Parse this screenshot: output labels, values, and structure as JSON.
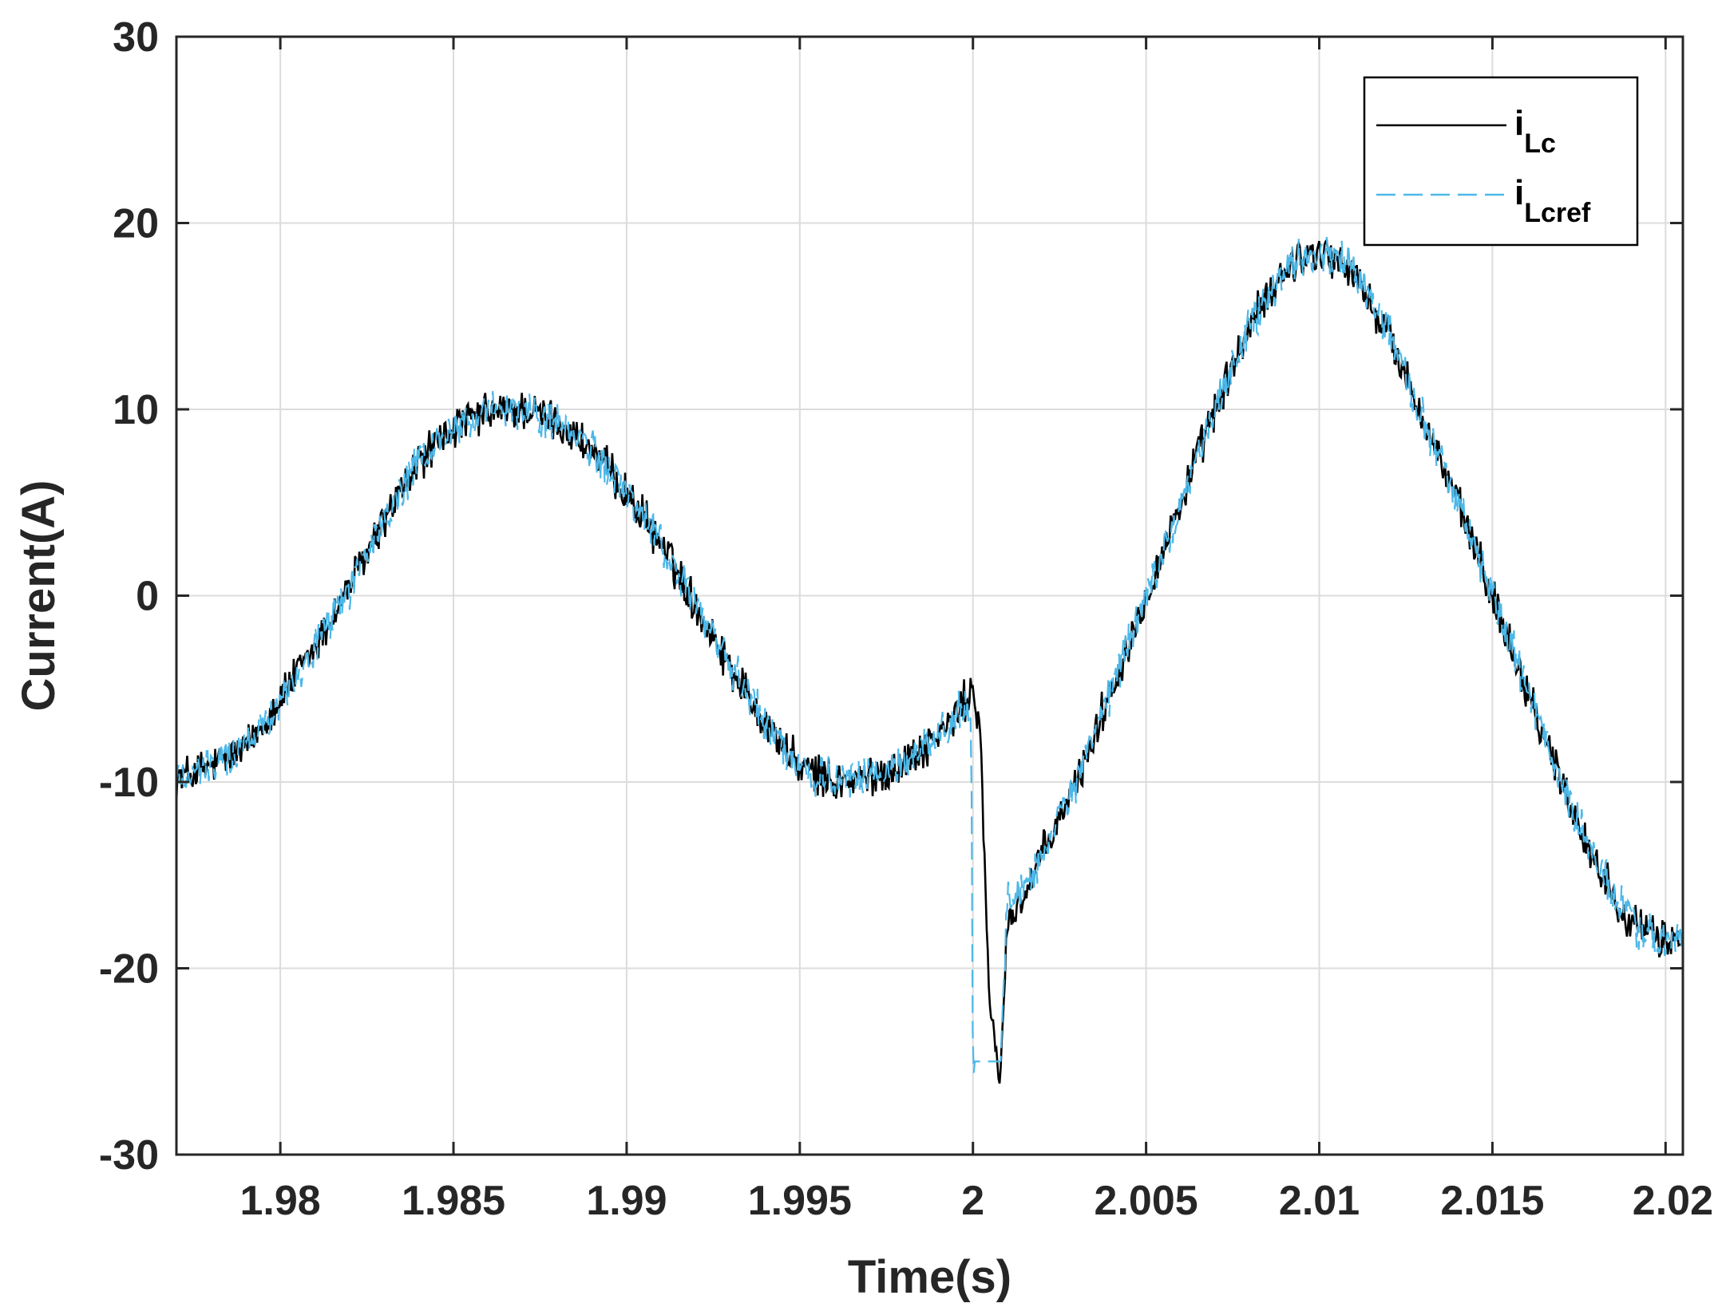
{
  "chart_data": {
    "type": "line",
    "title": "",
    "xlabel": "Time(s)",
    "ylabel": "Current(A)",
    "xlim": [
      1.977,
      2.0205
    ],
    "ylim": [
      -30,
      30
    ],
    "x_ticks": [
      1.98,
      1.985,
      1.99,
      1.995,
      2.0,
      2.005,
      2.01,
      2.015,
      2.02
    ],
    "x_tick_labels": [
      "1.98",
      "1.985",
      "1.99",
      "1.995",
      "2",
      "2.005",
      "2.01",
      "2.015",
      "2.02"
    ],
    "y_ticks": [
      -30,
      -20,
      -10,
      0,
      10,
      20,
      30
    ],
    "y_tick_labels": [
      "-30",
      "-20",
      "-10",
      "0",
      "10",
      "20",
      "30"
    ],
    "grid": true,
    "legend_position": "top-right",
    "series": [
      {
        "name": "i_Lc",
        "legend_main": "i",
        "legend_sub": "Lc",
        "color": "#000000",
        "style": "solid",
        "x": [
          1.977,
          1.978,
          1.979,
          1.98,
          1.981,
          1.982,
          1.983,
          1.984,
          1.985,
          1.986,
          1.987,
          1.988,
          1.989,
          1.99,
          1.991,
          1.992,
          1.993,
          1.994,
          1.995,
          1.996,
          1.997,
          1.998,
          1.999,
          1.9995,
          2.0,
          2.0002,
          2.0005,
          2.0008,
          2.001,
          2.0015,
          2.002,
          2.003,
          2.004,
          2.005,
          2.006,
          2.007,
          2.008,
          2.009,
          2.0095,
          2.01,
          2.0105,
          2.011,
          2.012,
          2.013,
          2.014,
          2.015,
          2.016,
          2.017,
          2.018,
          2.019,
          2.0195,
          2.02,
          2.0205
        ],
        "y": [
          -9.8,
          -9.2,
          -8.2,
          -5.5,
          -2.8,
          0.5,
          4.0,
          7.2,
          9.0,
          9.8,
          10.0,
          9.3,
          7.8,
          5.5,
          2.8,
          -0.5,
          -3.8,
          -6.8,
          -9.2,
          -10.0,
          -9.8,
          -9.0,
          -7.5,
          -6.5,
          -5.0,
          -7.0,
          -23.0,
          -25.5,
          -17.5,
          -16.0,
          -14.0,
          -10.0,
          -5.0,
          0.0,
          5.0,
          10.0,
          14.5,
          17.5,
          18.2,
          18.5,
          18.0,
          17.2,
          14.0,
          9.5,
          5.0,
          0.0,
          -5.0,
          -10.0,
          -14.5,
          -17.5,
          -18.2,
          -18.5,
          -18.3
        ]
      },
      {
        "name": "i_Lcref",
        "legend_main": "i",
        "legend_sub": "Lcref",
        "color": "#4db8e8",
        "style": "dashed",
        "x": [
          1.977,
          1.978,
          1.979,
          1.98,
          1.981,
          1.982,
          1.983,
          1.984,
          1.985,
          1.986,
          1.987,
          1.988,
          1.989,
          1.99,
          1.991,
          1.992,
          1.993,
          1.994,
          1.995,
          1.996,
          1.997,
          1.998,
          1.999,
          1.9995,
          1.99995,
          2.0,
          2.0001,
          2.0005,
          2.0008,
          2.0009,
          2.001,
          2.0015,
          2.002,
          2.003,
          2.004,
          2.005,
          2.006,
          2.007,
          2.008,
          2.009,
          2.0095,
          2.01,
          2.0105,
          2.011,
          2.012,
          2.013,
          2.014,
          2.015,
          2.016,
          2.017,
          2.018,
          2.019,
          2.0195,
          2.02,
          2.0205
        ],
        "y": [
          -9.8,
          -9.2,
          -8.0,
          -5.5,
          -2.8,
          0.5,
          4.0,
          7.2,
          9.0,
          9.8,
          10.0,
          9.3,
          7.8,
          5.5,
          2.8,
          -0.5,
          -3.8,
          -6.8,
          -9.2,
          -10.0,
          -9.8,
          -9.0,
          -7.5,
          -6.5,
          -6.0,
          -25.0,
          -25.0,
          -25.0,
          -25.0,
          -20.0,
          -16.5,
          -15.5,
          -14.0,
          -10.0,
          -5.0,
          0.0,
          5.0,
          10.0,
          14.5,
          17.5,
          18.2,
          18.3,
          18.0,
          17.5,
          14.2,
          9.5,
          5.0,
          0.0,
          -5.0,
          -10.0,
          -14.5,
          -17.5,
          -18.2,
          -18.6,
          -18.5
        ]
      }
    ]
  }
}
